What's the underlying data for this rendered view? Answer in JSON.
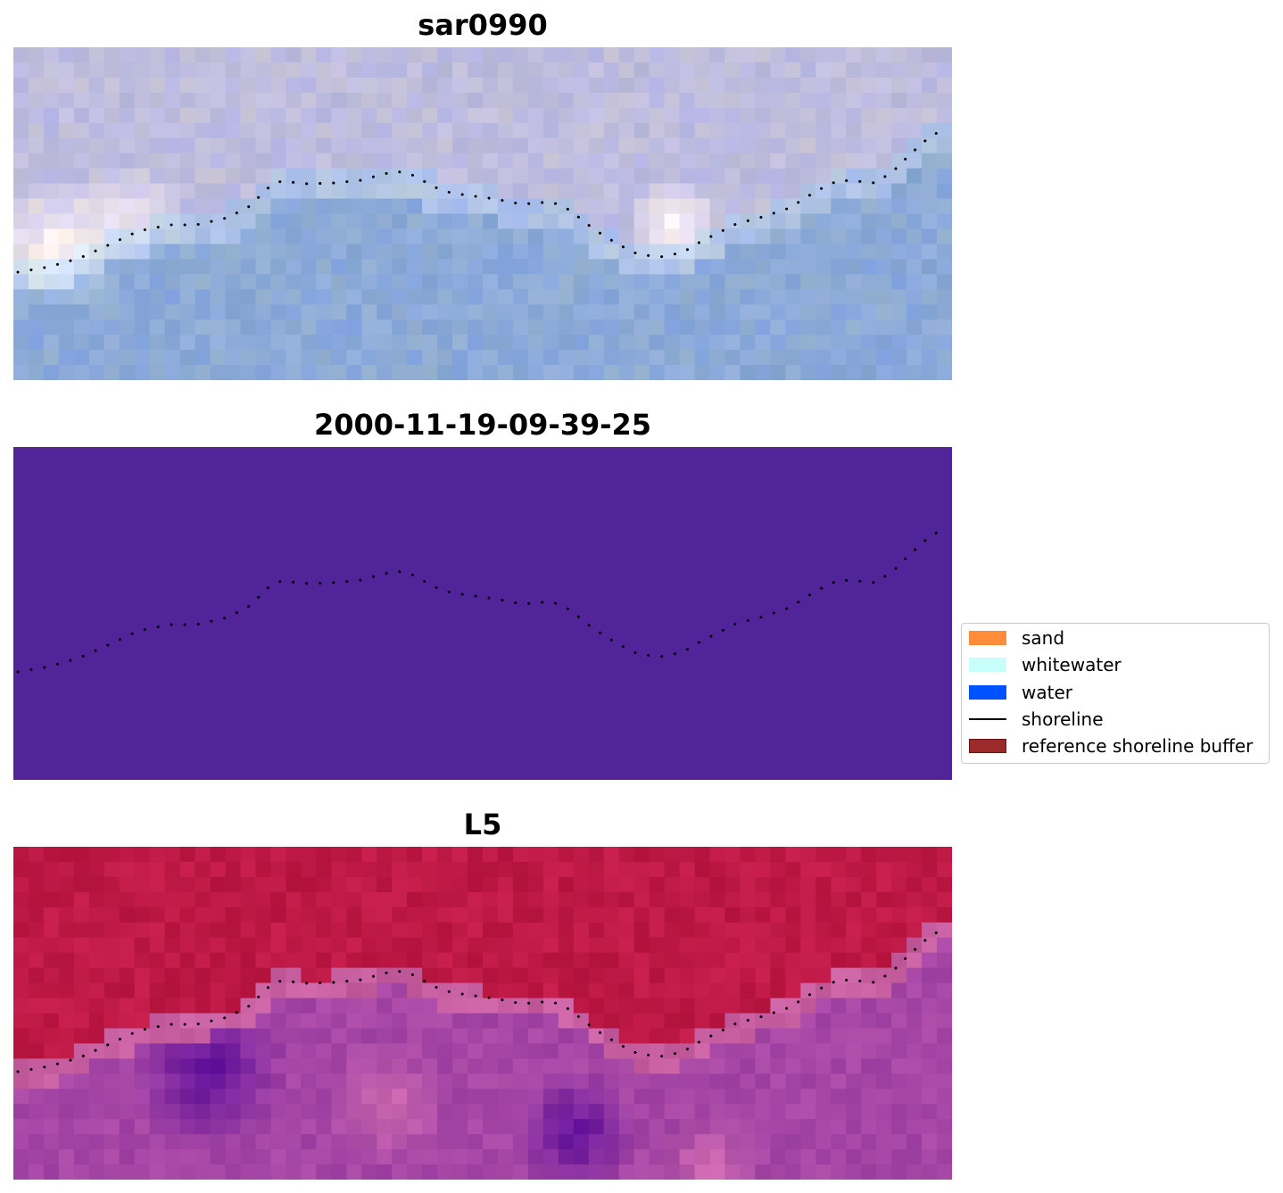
{
  "panels": [
    {
      "title": "sar0990",
      "kind": "rgb-false-color-1"
    },
    {
      "title": "2000-11-19-09-39-25",
      "kind": "classified",
      "fill": "#52249a"
    },
    {
      "title": "L5",
      "kind": "rgb-false-color-2"
    }
  ],
  "legend": {
    "placement": "right-center",
    "items": [
      {
        "label": "sand",
        "type": "patch",
        "color": "#ff8c3a"
      },
      {
        "label": "whitewater",
        "type": "patch",
        "color": "#c8fefb"
      },
      {
        "label": "water",
        "type": "patch",
        "color": "#0052ff"
      },
      {
        "label": "shoreline",
        "type": "line",
        "color": "#000000"
      },
      {
        "label": "reference shoreline buffer",
        "type": "patch",
        "color": "#9b2a2a",
        "edge": "#6e1212"
      }
    ]
  },
  "shoreline_color": "#000000"
}
